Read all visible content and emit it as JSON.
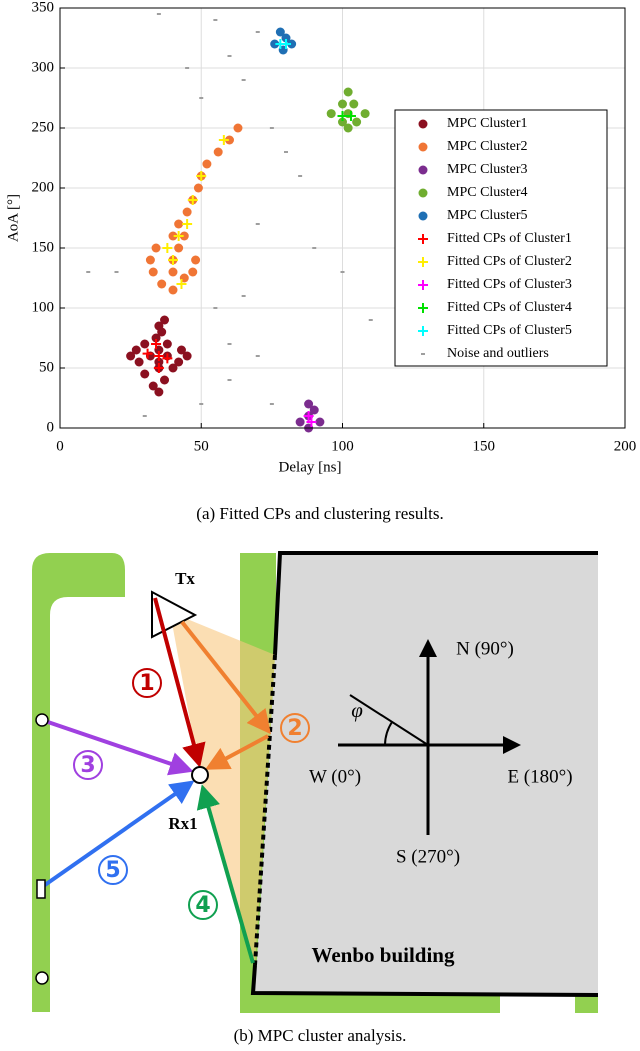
{
  "chart_data": {
    "type": "scatter",
    "xlabel": "Delay [ns]",
    "ylabel": "AoA [°]",
    "xlim": [
      0,
      200
    ],
    "ylim": [
      0,
      350
    ],
    "xticks": [
      0,
      50,
      100,
      150,
      200
    ],
    "yticks": [
      0,
      50,
      100,
      150,
      200,
      250,
      300,
      350
    ],
    "grid": true,
    "legend": "upper right",
    "series": [
      {
        "name": "MPC Cluster1",
        "color": "#8b1020",
        "marker": "o",
        "x": [
          35,
          33,
          37,
          30,
          35,
          40,
          28,
          35,
          42,
          25,
          32,
          38,
          45,
          27,
          35,
          43,
          30,
          38,
          34,
          36,
          35,
          37
        ],
        "values": [
          30,
          35,
          40,
          45,
          50,
          50,
          55,
          55,
          55,
          60,
          60,
          60,
          60,
          65,
          65,
          65,
          70,
          70,
          75,
          80,
          85,
          90
        ]
      },
      {
        "name": "MPC Cluster2",
        "color": "#f07535",
        "marker": "o",
        "x": [
          40,
          36,
          44,
          33,
          40,
          47,
          32,
          40,
          48,
          34,
          42,
          40,
          44,
          42,
          45,
          47,
          49,
          50,
          52,
          56,
          60,
          63
        ],
        "values": [
          115,
          120,
          125,
          130,
          130,
          130,
          140,
          140,
          140,
          150,
          150,
          160,
          160,
          170,
          180,
          190,
          200,
          210,
          220,
          230,
          240,
          250
        ]
      },
      {
        "name": "MPC Cluster3",
        "color": "#7b2c8e",
        "marker": "o",
        "x": [
          88,
          85,
          92,
          88,
          90,
          88
        ],
        "values": [
          0,
          5,
          5,
          10,
          15,
          20
        ]
      },
      {
        "name": "MPC Cluster4",
        "color": "#70ad30",
        "marker": "o",
        "x": [
          102,
          100,
          104,
          96,
          102,
          108,
          100,
          105,
          102
        ],
        "values": [
          280,
          270,
          270,
          262,
          262,
          262,
          255,
          255,
          250
        ]
      },
      {
        "name": "MPC Cluster5",
        "color": "#1f6fb4",
        "marker": "o",
        "x": [
          78,
          80,
          76,
          82,
          79
        ],
        "values": [
          330,
          325,
          320,
          320,
          315
        ]
      },
      {
        "name": "Fitted CPs of Cluster1",
        "color": "#ff0000",
        "marker": "+",
        "x": [
          35,
          31,
          38,
          34,
          35
        ],
        "values": [
          60,
          62,
          58,
          70,
          50
        ]
      },
      {
        "name": "Fitted CPs of Cluster2",
        "color": "#ffee00",
        "marker": "+",
        "x": [
          40,
          38,
          42,
          45,
          47,
          50,
          58,
          43
        ],
        "values": [
          140,
          150,
          160,
          170,
          190,
          210,
          240,
          120
        ]
      },
      {
        "name": "Fitted CPs of Cluster3",
        "color": "#ff00ff",
        "marker": "+",
        "x": [
          88,
          89
        ],
        "values": [
          10,
          5
        ]
      },
      {
        "name": "Fitted CPs of Cluster4",
        "color": "#00e000",
        "marker": "+",
        "x": [
          100,
          103
        ],
        "values": [
          260,
          260
        ]
      },
      {
        "name": "Fitted CPs of Cluster5",
        "color": "#00ffff",
        "marker": "+",
        "x": [
          78,
          80
        ],
        "values": [
          320,
          320
        ]
      },
      {
        "name": "Noise and outliers",
        "color": "#9e9e9e",
        "marker": ".",
        "x": [
          35,
          55,
          70,
          60,
          45,
          65,
          50,
          75,
          80,
          85,
          70,
          90,
          20,
          100,
          65,
          10,
          60,
          70,
          60,
          50,
          75,
          30,
          110,
          55
        ],
        "values": [
          345,
          340,
          330,
          310,
          300,
          290,
          275,
          250,
          230,
          210,
          170,
          150,
          130,
          130,
          110,
          130,
          70,
          60,
          40,
          20,
          20,
          10,
          90,
          100
        ]
      }
    ]
  },
  "diagram": {
    "tx": "Tx",
    "rx": "Rx1",
    "paths": [
      "1",
      "2",
      "3",
      "4",
      "5"
    ],
    "north": "N (90°)",
    "west": "W (0°)",
    "east": "E (180°)",
    "south": "S (270°)",
    "angle": "φ",
    "building": "Wenbo building"
  },
  "captions": [
    "(a) Fitted CPs and clustering results.",
    "(b) MPC cluster analysis."
  ]
}
